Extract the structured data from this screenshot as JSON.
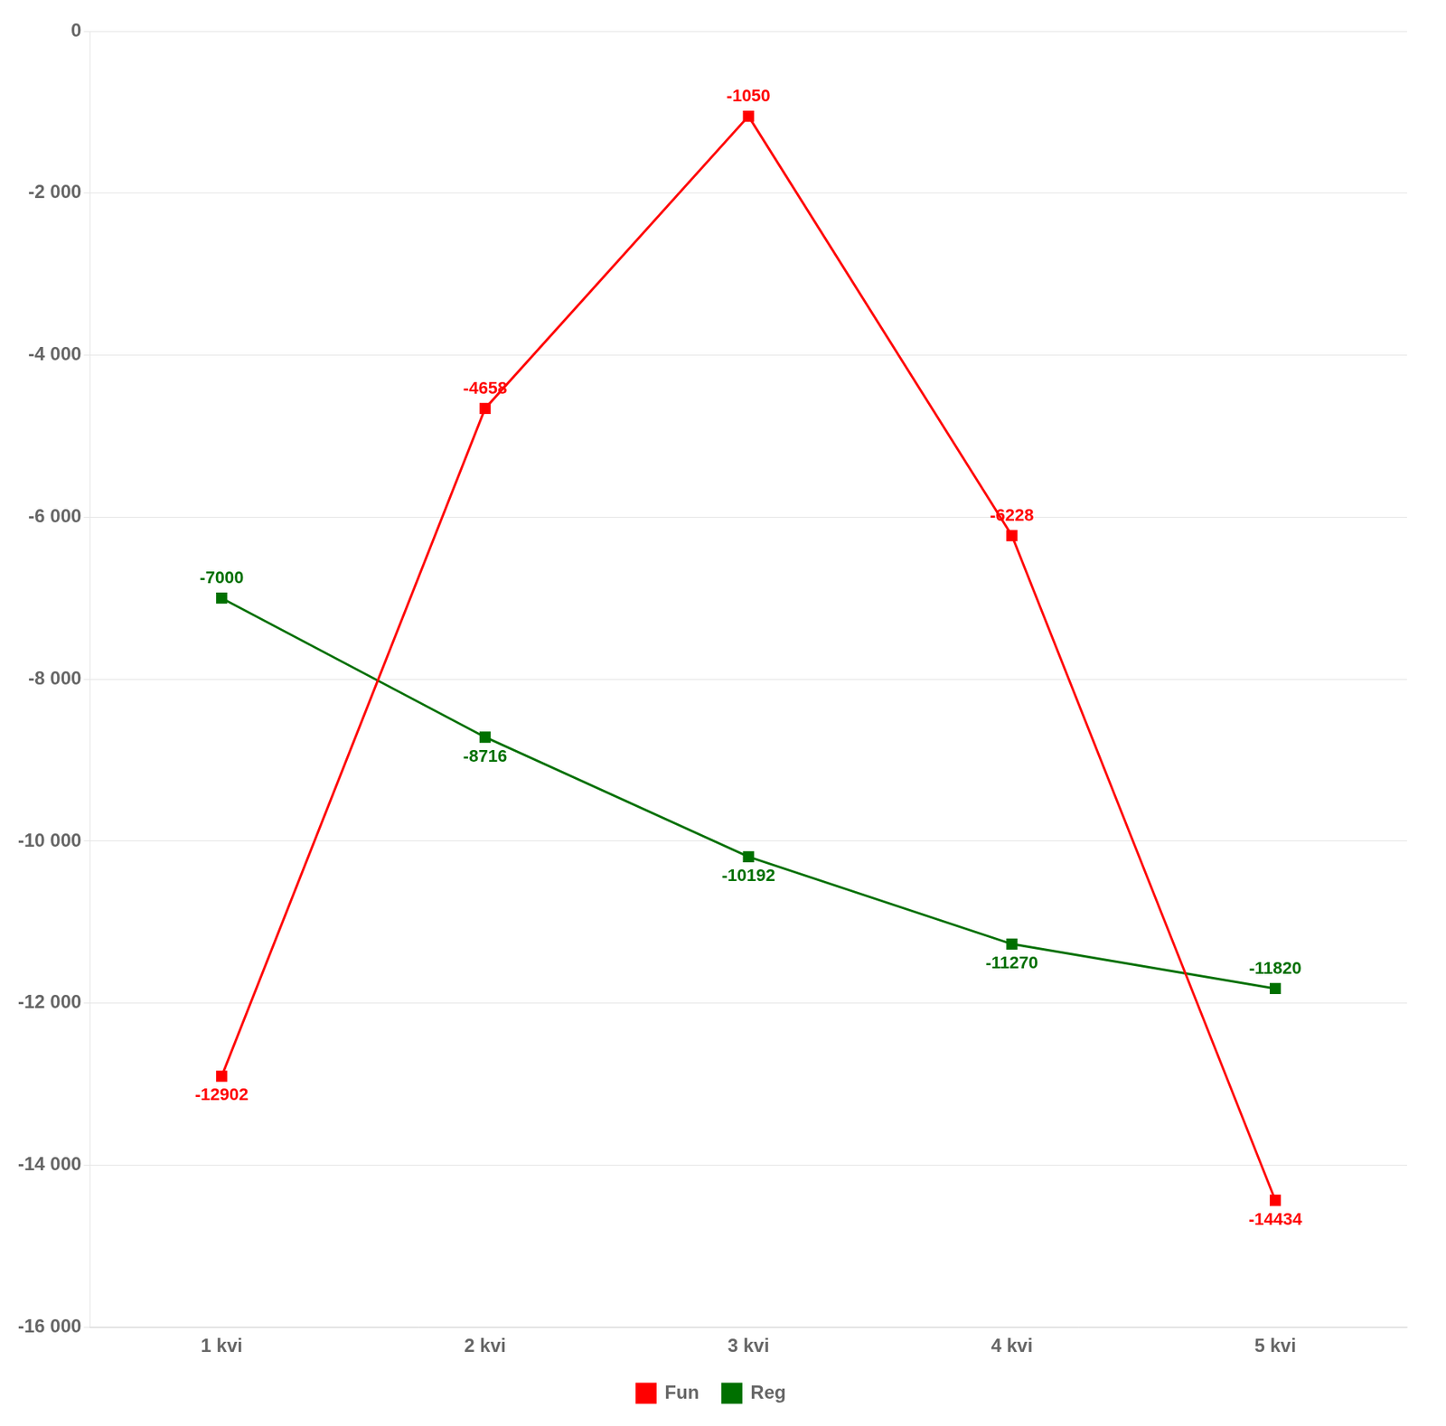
{
  "chart_data": {
    "type": "line",
    "categories": [
      "1 kvi",
      "2 kvi",
      "3 kvi",
      "4 kvi",
      "5 kvi"
    ],
    "series": [
      {
        "name": "Fun",
        "color": "#FF0000",
        "marker": "square",
        "values": [
          -12902,
          -4658,
          -1050,
          -6228,
          -14434
        ]
      },
      {
        "name": "Reg",
        "color": "#007000",
        "marker": "square",
        "values": [
          -7000,
          -8716,
          -10192,
          -11270,
          -11820
        ]
      }
    ],
    "ylim": [
      -16000,
      0
    ],
    "yticks": [
      0,
      {
        "value": -2000,
        "label": "-2 000"
      },
      {
        "value": -4000,
        "label": "-4 000"
      },
      {
        "value": -6000,
        "label": "-6 000"
      },
      {
        "value": -8000,
        "label": "-8 000"
      },
      {
        "value": -10000,
        "label": "-10 000"
      },
      {
        "value": -12000,
        "label": "-12 000"
      },
      {
        "value": -14000,
        "label": "-14 000"
      },
      {
        "value": -16000,
        "label": "-16 000"
      }
    ],
    "grid": true,
    "legend": "bottom",
    "data_labels": true
  }
}
